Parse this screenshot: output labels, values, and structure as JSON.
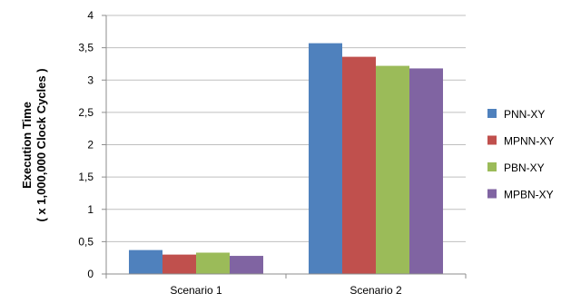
{
  "chart_data": {
    "type": "bar",
    "categories": [
      "Scenario 1",
      "Scenario 2"
    ],
    "series": [
      {
        "name": "PNN-XY",
        "color": "#4f81bd",
        "values": [
          0.37,
          3.57
        ]
      },
      {
        "name": "MPNN-XY",
        "color": "#c0504d",
        "values": [
          0.3,
          3.36
        ]
      },
      {
        "name": "PBN-XY",
        "color": "#9bbb59",
        "values": [
          0.33,
          3.22
        ]
      },
      {
        "name": "MPBN-XY",
        "color": "#8064a2",
        "values": [
          0.28,
          3.18
        ]
      }
    ],
    "ylabel_line1": "Execution Time",
    "ylabel_line2": "( x 1,000,000 Clock Cycles )",
    "ylim": [
      0,
      4
    ],
    "yticks": [
      0,
      0.5,
      1,
      1.5,
      2,
      2.5,
      3,
      3.5,
      4
    ],
    "ytick_labels": [
      "0",
      "0,5",
      "1",
      "1,5",
      "2",
      "2,5",
      "3",
      "3,5",
      "4"
    ],
    "grid": true,
    "legend_position": "right"
  }
}
